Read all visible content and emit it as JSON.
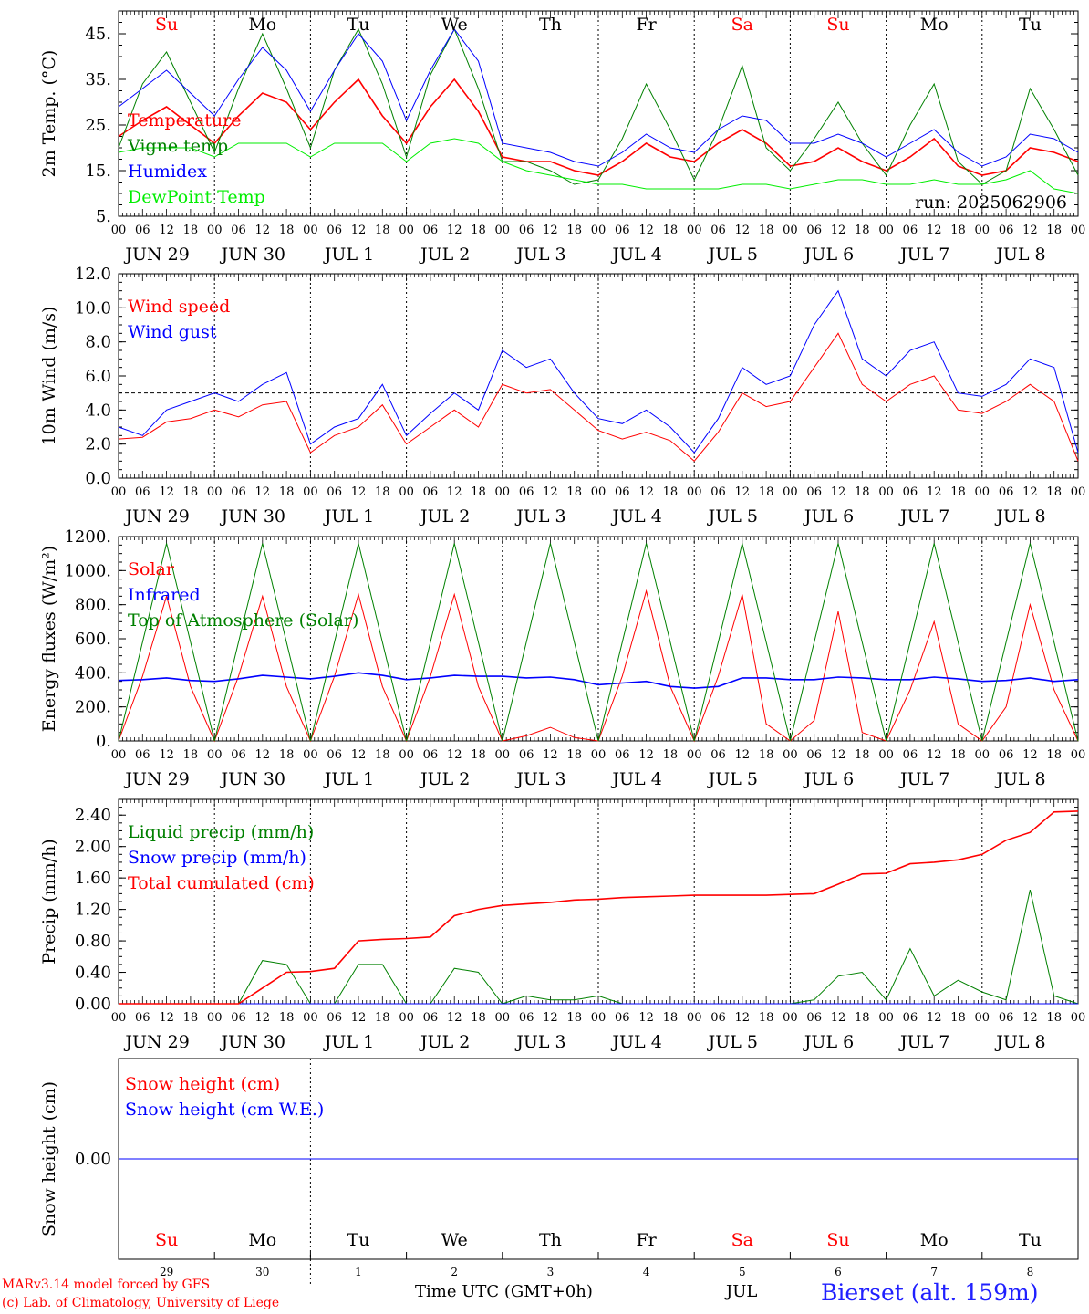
{
  "station": "Bierset (alt. 159m)",
  "credits": [
    "MARv3.14 model forced by GFS",
    "(c) Lab. of Climatology, University of Liege"
  ],
  "run_label": "run: 2025062906",
  "xlabel": "Time UTC (GMT+0h)",
  "month_label": "JUL",
  "colors": {
    "red": "#ff0000",
    "blue": "#0000ff",
    "green": "#008000",
    "light_green": "#00ee00",
    "station_blue": "#2020ff"
  },
  "days": [
    {
      "dow": "Su",
      "weekend": true,
      "date": "JUN 29",
      "num": "29"
    },
    {
      "dow": "Mo",
      "weekend": false,
      "date": "JUN 30",
      "num": "30"
    },
    {
      "dow": "Tu",
      "weekend": false,
      "date": "JUL  1",
      "num": "1"
    },
    {
      "dow": "We",
      "weekend": false,
      "date": "JUL  2",
      "num": "2"
    },
    {
      "dow": "Th",
      "weekend": false,
      "date": "JUL  3",
      "num": "3"
    },
    {
      "dow": "Fr",
      "weekend": false,
      "date": "JUL  4",
      "num": "4"
    },
    {
      "dow": "Sa",
      "weekend": true,
      "date": "JUL  5",
      "num": "5"
    },
    {
      "dow": "Su",
      "weekend": true,
      "date": "JUL  6",
      "num": "6"
    },
    {
      "dow": "Mo",
      "weekend": false,
      "date": "JUL  7",
      "num": "7"
    },
    {
      "dow": "Tu",
      "weekend": false,
      "date": "JUL  8",
      "num": "8"
    }
  ],
  "hour_ticks": [
    "00",
    "06",
    "12",
    "18"
  ],
  "chart_data": [
    {
      "type": "line",
      "ylabel": "2m Temp. (°C)",
      "ylim": [
        5,
        50
      ],
      "yticks": [
        5,
        15,
        25,
        35,
        45
      ],
      "ytick_labels": [
        "5.",
        "15.",
        "25.",
        "35.",
        "45."
      ],
      "x_hours": [
        0,
        6,
        12,
        18,
        24,
        30,
        36,
        42,
        48,
        54,
        60,
        66,
        72,
        78,
        84,
        90,
        96,
        102,
        108,
        114,
        120,
        126,
        132,
        138,
        144,
        150,
        156,
        162,
        168,
        174,
        180,
        186,
        192,
        198,
        204,
        210,
        216,
        222,
        228,
        234,
        240
      ],
      "series": [
        {
          "name": "Temperature",
          "color": "#ff0000",
          "values": [
            22.5,
            26,
            29,
            25,
            21,
            27,
            32,
            30,
            24,
            30,
            35,
            27,
            21,
            29,
            35,
            28,
            18,
            17,
            17,
            15,
            14,
            17,
            21,
            18,
            17,
            21,
            24,
            21,
            16,
            17,
            20,
            17,
            15,
            18,
            22,
            16,
            14,
            15,
            20,
            19,
            17
          ]
        },
        {
          "name": "Vigne temp",
          "color": "#008000",
          "values": [
            20,
            34,
            41,
            30,
            19,
            33,
            45,
            33,
            20,
            37,
            46,
            34,
            18,
            36,
            46,
            33,
            17,
            17,
            15,
            12,
            13,
            22,
            34,
            24,
            13,
            24,
            38,
            20,
            15,
            22,
            30,
            21,
            14,
            25,
            34,
            17,
            12,
            15,
            33,
            24,
            14
          ]
        },
        {
          "name": "Humidex",
          "color": "#0000ff",
          "values": [
            29,
            33,
            37,
            32,
            27,
            35,
            42,
            37,
            28,
            37,
            45,
            39,
            26,
            37,
            46,
            39,
            21,
            20,
            19,
            17,
            16,
            19,
            23,
            20,
            19,
            24,
            27,
            26,
            21,
            21,
            23,
            21,
            18,
            21,
            24,
            19,
            16,
            18,
            23,
            22,
            19
          ]
        },
        {
          "name": "DewPoint Temp",
          "color": "#00ee00",
          "values": [
            19,
            20,
            20,
            20,
            18,
            21,
            21,
            21,
            18,
            21,
            21,
            21,
            17,
            21,
            22,
            21,
            17,
            15,
            14,
            13,
            12,
            12,
            11,
            11,
            11,
            11,
            12,
            12,
            11,
            12,
            13,
            13,
            12,
            12,
            13,
            12,
            12,
            13,
            15,
            11,
            10
          ]
        }
      ]
    },
    {
      "type": "line",
      "ylabel": "10m Wind (m/s)",
      "ylim": [
        0,
        12
      ],
      "yticks": [
        0,
        2,
        4,
        6,
        8,
        10,
        12
      ],
      "ytick_labels": [
        "0.0",
        "2.0",
        "4.0",
        "6.0",
        "8.0",
        "10.0",
        "12.0"
      ],
      "ref_line": 5,
      "x_hours": [
        0,
        6,
        12,
        18,
        24,
        30,
        36,
        42,
        48,
        54,
        60,
        66,
        72,
        78,
        84,
        90,
        96,
        102,
        108,
        114,
        120,
        126,
        132,
        138,
        144,
        150,
        156,
        162,
        168,
        174,
        180,
        186,
        192,
        198,
        204,
        210,
        216,
        222,
        228,
        234,
        240
      ],
      "series": [
        {
          "name": "Wind speed",
          "color": "#ff0000",
          "values": [
            2.3,
            2.4,
            3.3,
            3.5,
            4,
            3.6,
            4.3,
            4.5,
            1.5,
            2.5,
            3,
            4.3,
            2,
            3,
            4,
            3,
            5.5,
            5,
            5.2,
            4,
            2.8,
            2.3,
            2.7,
            2.2,
            1,
            2.7,
            5,
            4.2,
            4.5,
            6.5,
            8.5,
            5.5,
            4.5,
            5.5,
            6,
            4,
            3.8,
            4.5,
            5.5,
            4.5,
            1
          ]
        },
        {
          "name": "Wind gust",
          "color": "#0000ff",
          "values": [
            3,
            2.5,
            4,
            4.5,
            5,
            4.5,
            5.5,
            6.2,
            2,
            3,
            3.5,
            5.5,
            2.5,
            3.8,
            5,
            4,
            7.5,
            6.5,
            7,
            5,
            3.5,
            3.2,
            4,
            3,
            1.5,
            3.5,
            6.5,
            5.5,
            6,
            9,
            11,
            7,
            6,
            7.5,
            8,
            5,
            4.8,
            5.5,
            7,
            6.5,
            1.5
          ]
        }
      ]
    },
    {
      "type": "line",
      "ylabel": "Energy fluxes (W/m²)",
      "ylim": [
        0,
        1200
      ],
      "yticks": [
        0,
        200,
        400,
        600,
        800,
        1000,
        1200
      ],
      "ytick_labels": [
        "0.",
        "200.",
        "400.",
        "600.",
        "800.",
        "1000.",
        "1200."
      ],
      "x_hours": [
        0,
        6,
        12,
        18,
        24,
        30,
        36,
        42,
        48,
        54,
        60,
        66,
        72,
        78,
        84,
        90,
        96,
        102,
        108,
        114,
        120,
        126,
        132,
        138,
        144,
        150,
        156,
        162,
        168,
        174,
        180,
        186,
        192,
        198,
        204,
        210,
        216,
        222,
        228,
        234,
        240
      ],
      "series": [
        {
          "name": "Solar",
          "color": "#ff0000",
          "values": [
            0,
            380,
            850,
            320,
            0,
            380,
            850,
            320,
            0,
            380,
            860,
            320,
            0,
            380,
            860,
            320,
            0,
            30,
            80,
            20,
            0,
            380,
            880,
            320,
            0,
            380,
            860,
            100,
            0,
            120,
            760,
            50,
            0,
            300,
            700,
            100,
            0,
            200,
            800,
            300,
            0
          ]
        },
        {
          "name": "Infrared",
          "color": "#0000ff",
          "values": [
            355,
            360,
            370,
            355,
            350,
            365,
            385,
            375,
            365,
            380,
            400,
            385,
            360,
            370,
            385,
            380,
            380,
            370,
            375,
            360,
            330,
            340,
            350,
            320,
            310,
            320,
            370,
            370,
            360,
            360,
            375,
            370,
            360,
            360,
            375,
            365,
            350,
            355,
            370,
            350,
            360
          ]
        },
        {
          "name": "Top of Atmosphere (Solar)",
          "color": "#008000",
          "values": [
            0,
            580,
            1160,
            580,
            0,
            580,
            1160,
            580,
            0,
            580,
            1160,
            580,
            0,
            580,
            1160,
            580,
            0,
            580,
            1160,
            580,
            0,
            580,
            1160,
            580,
            0,
            580,
            1160,
            580,
            0,
            580,
            1160,
            580,
            0,
            580,
            1160,
            580,
            0,
            580,
            1160,
            580,
            0
          ]
        }
      ]
    },
    {
      "type": "line",
      "ylabel": "Precip (mm/h)",
      "ylim": [
        0,
        2.6
      ],
      "yticks": [
        0,
        0.4,
        0.8,
        1.2,
        1.6,
        2,
        2.4
      ],
      "ytick_labels": [
        "0.00",
        "0.40",
        "0.80",
        "1.20",
        "1.60",
        "2.00",
        "2.40"
      ],
      "x_hours": [
        0,
        6,
        12,
        18,
        24,
        30,
        36,
        42,
        48,
        54,
        60,
        66,
        72,
        78,
        84,
        90,
        96,
        102,
        108,
        114,
        120,
        126,
        132,
        138,
        144,
        150,
        156,
        162,
        168,
        174,
        180,
        186,
        192,
        198,
        204,
        210,
        216,
        222,
        228,
        234,
        240
      ],
      "series": [
        {
          "name": "Liquid precip (mm/h)",
          "color": "#008000",
          "values": [
            0,
            0,
            0,
            0,
            0,
            0,
            0.55,
            0.5,
            0,
            0,
            0.5,
            0.5,
            0,
            0,
            0.45,
            0.4,
            0,
            0.1,
            0.05,
            0.05,
            0.1,
            0,
            0,
            0,
            0,
            0,
            0,
            0,
            0,
            0.05,
            0.35,
            0.4,
            0.05,
            0.7,
            0.1,
            0.3,
            0.15,
            0.05,
            1.45,
            0.1,
            0
          ]
        },
        {
          "name": "Snow precip (mm/h)",
          "color": "#0000ff",
          "values": [
            0,
            0,
            0,
            0,
            0,
            0,
            0,
            0,
            0,
            0,
            0,
            0,
            0,
            0,
            0,
            0,
            0,
            0,
            0,
            0,
            0,
            0,
            0,
            0,
            0,
            0,
            0,
            0,
            0,
            0,
            0,
            0,
            0,
            0,
            0,
            0,
            0,
            0,
            0,
            0,
            0
          ]
        },
        {
          "name": "Total cumulated (cm)",
          "color": "#ff0000",
          "values": [
            0,
            0,
            0,
            0,
            0,
            0,
            0.2,
            0.4,
            0.41,
            0.45,
            0.8,
            0.82,
            0.83,
            0.85,
            1.12,
            1.2,
            1.25,
            1.27,
            1.29,
            1.32,
            1.33,
            1.35,
            1.36,
            1.37,
            1.38,
            1.38,
            1.38,
            1.38,
            1.39,
            1.4,
            1.52,
            1.65,
            1.66,
            1.78,
            1.8,
            1.83,
            1.9,
            2.08,
            2.18,
            2.44,
            2.45
          ]
        }
      ]
    },
    {
      "type": "line",
      "ylabel": "Snow height (cm)",
      "ylim": [
        -1,
        1
      ],
      "yticks": [
        0
      ],
      "ytick_labels": [
        "0.00"
      ],
      "x_hours": [
        0,
        240
      ],
      "series": [
        {
          "name": "Snow height (cm)",
          "color": "#ff0000",
          "values": [
            0,
            0
          ]
        },
        {
          "name": "Snow height (cm W.E.)",
          "color": "#0000ff",
          "values": [
            0,
            0
          ]
        }
      ]
    }
  ]
}
